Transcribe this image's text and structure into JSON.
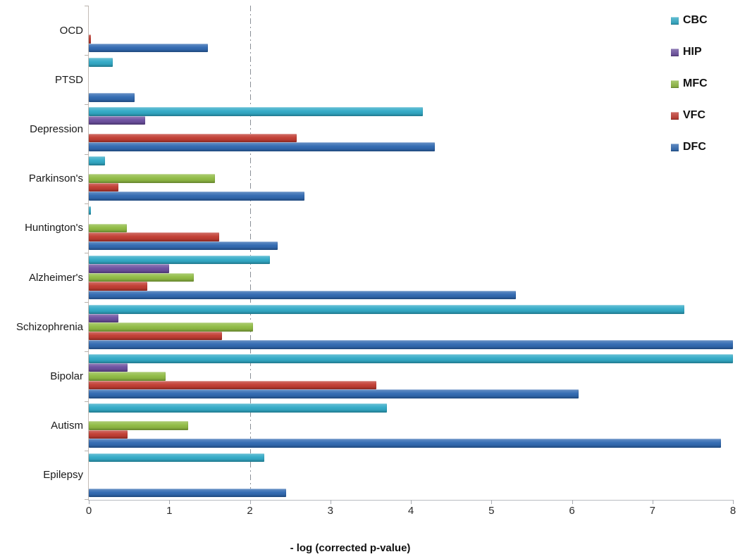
{
  "chart_data": {
    "type": "bar",
    "orientation": "horizontal",
    "xlabel": "- log (corrected p-value)",
    "ylabel": "",
    "xlim": [
      0,
      8
    ],
    "x_ticks": [
      "0",
      "1",
      "2",
      "3",
      "4",
      "5",
      "6",
      "7",
      "8"
    ],
    "grid": false,
    "threshold_line_x": 2,
    "categories": [
      "OCD",
      "PTSD",
      "Depression",
      "Parkinson's",
      "Huntington's",
      "Alzheimer's",
      "Schizophrenia",
      "Bipolar",
      "Autism",
      "Epilepsy"
    ],
    "series": [
      {
        "name": "CBC",
        "color": "#2FA9C6",
        "values": [
          0,
          0.3,
          4.15,
          0.2,
          0.03,
          2.25,
          7.4,
          8.0,
          3.7,
          2.18
        ]
      },
      {
        "name": "HIP",
        "color": "#6A4D9E",
        "values": [
          0,
          0,
          0.7,
          0,
          0,
          1.0,
          0.37,
          0.48,
          0,
          0
        ]
      },
      {
        "name": "MFC",
        "color": "#8FBA41",
        "values": [
          0,
          0,
          0,
          1.57,
          0.47,
          1.3,
          2.04,
          0.95,
          1.23,
          0
        ]
      },
      {
        "name": "VFC",
        "color": "#C03A30",
        "values": [
          0.03,
          0,
          2.58,
          0.37,
          1.62,
          0.73,
          1.65,
          3.57,
          0.48,
          0
        ]
      },
      {
        "name": "DFC",
        "color": "#2E67B0",
        "values": [
          1.48,
          0.57,
          4.3,
          2.68,
          2.35,
          5.3,
          8.0,
          6.08,
          7.85,
          2.45
        ]
      }
    ],
    "legend": {
      "position": "top-right",
      "entries": [
        "CBC",
        "HIP",
        "MFC",
        "VFC",
        "DFC"
      ]
    }
  }
}
